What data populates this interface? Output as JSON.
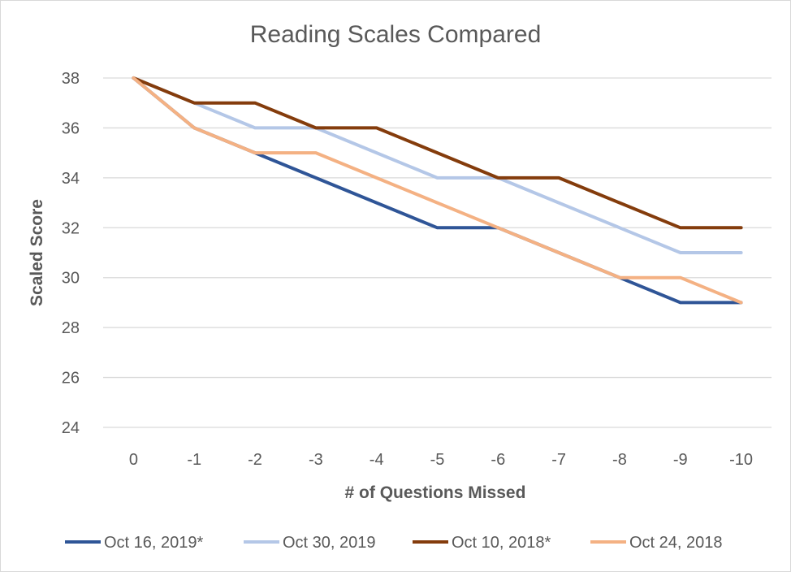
{
  "chart_data": {
    "type": "line",
    "title": "Reading Scales Compared",
    "xlabel": "# of Questions Missed",
    "ylabel": "Scaled Score",
    "categories": [
      "0",
      "-1",
      "-2",
      "-3",
      "-4",
      "-5",
      "-6",
      "-7",
      "-8",
      "-9",
      "-10"
    ],
    "ylim": [
      24,
      38
    ],
    "yticks": [
      "24",
      "26",
      "28",
      "30",
      "32",
      "34",
      "36",
      "38"
    ],
    "grid": true,
    "legend_position": "bottom",
    "series": [
      {
        "name": "Oct 16, 2019*",
        "color": "#2f5597",
        "values": [
          38,
          36,
          35,
          34,
          33,
          32,
          32,
          31,
          30,
          29,
          29
        ]
      },
      {
        "name": "Oct 30, 2019",
        "color": "#b4c7e7",
        "values": [
          38,
          37,
          36,
          36,
          35,
          34,
          34,
          33,
          32,
          31,
          31
        ]
      },
      {
        "name": "Oct 10, 2018*",
        "color": "#843c0c",
        "values": [
          38,
          37,
          37,
          36,
          36,
          35,
          34,
          34,
          33,
          32,
          32
        ]
      },
      {
        "name": "Oct 24, 2018",
        "color": "#f4b183",
        "values": [
          38,
          36,
          35,
          35,
          34,
          33,
          32,
          31,
          30,
          30,
          29
        ]
      }
    ]
  }
}
